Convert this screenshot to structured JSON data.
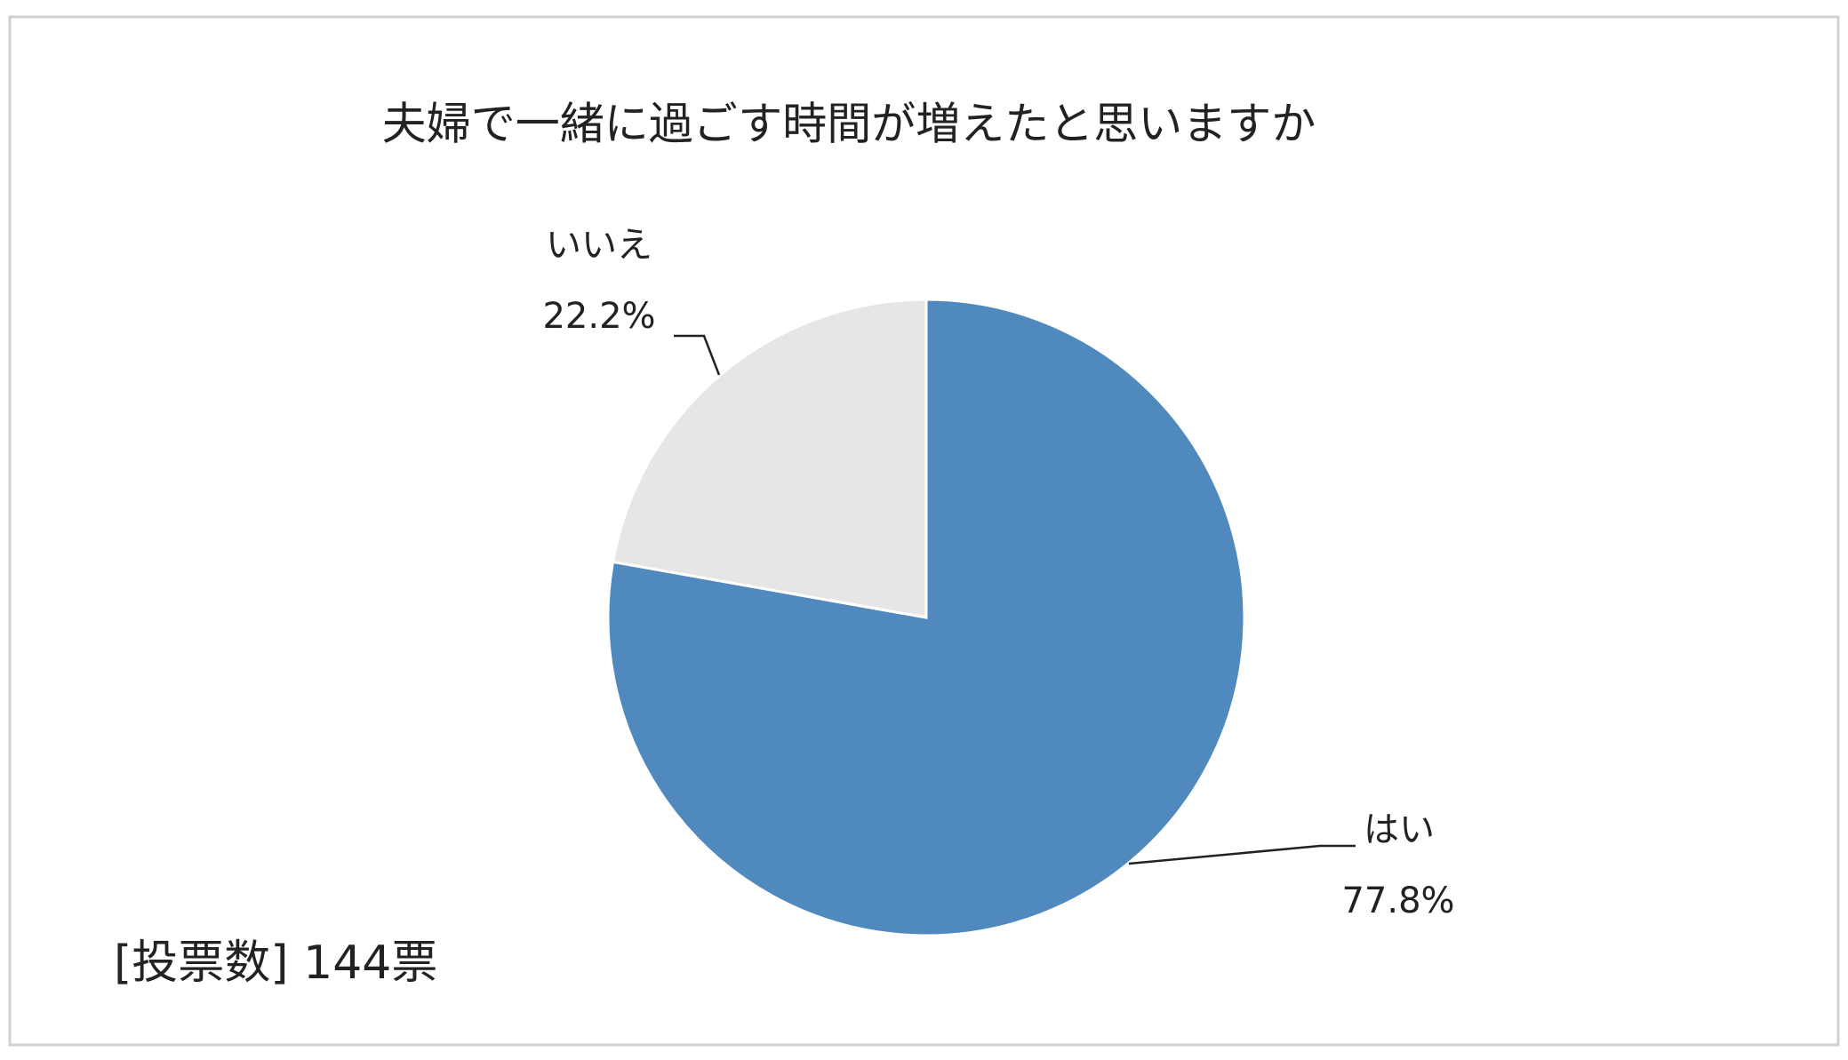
{
  "chart_data": {
    "type": "pie",
    "title": "夫婦で一緒に過ごす時間が増えたと思いますか",
    "categories": [
      "はい",
      "いいえ"
    ],
    "values": [
      77.8,
      22.2
    ],
    "value_labels": [
      "77.8%",
      "22.2%"
    ],
    "colors": [
      "#4f89bd",
      "#e6e6e6"
    ],
    "note": "[投票数] 144票"
  }
}
